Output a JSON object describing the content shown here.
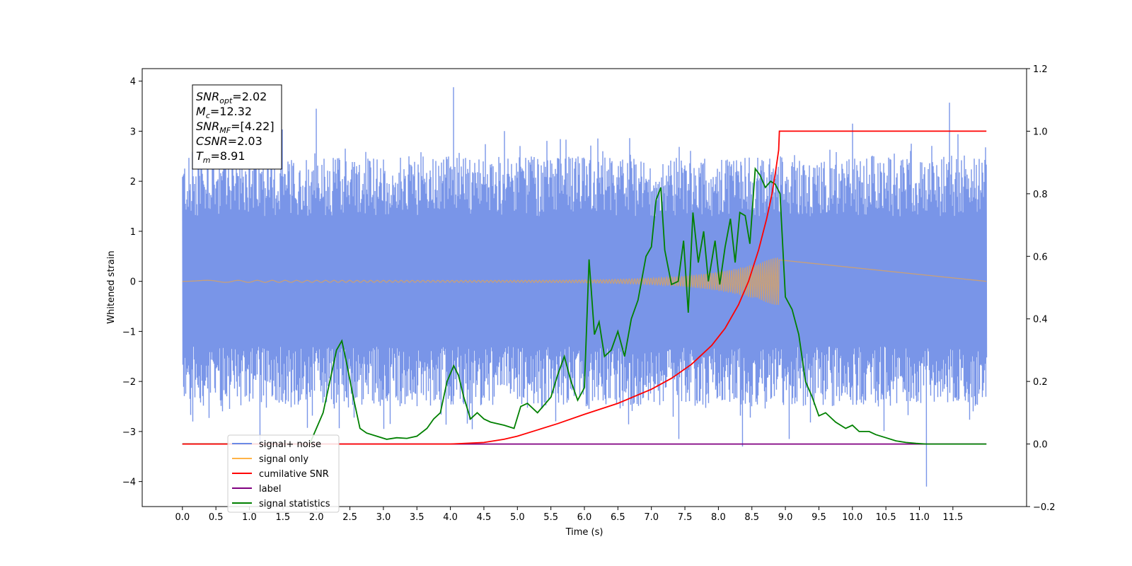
{
  "chart_data": {
    "type": "line",
    "xlabel": "Time (s)",
    "ylabel": "Whitened strain",
    "xlim": [
      -0.6,
      12.6
    ],
    "ylim": [
      -4.5,
      4.25
    ],
    "y2lim": [
      -0.2,
      1.2
    ],
    "x_ticks": [
      "0.0",
      "0.5",
      "1.0",
      "1.5",
      "2.0",
      "2.5",
      "3.0",
      "3.5",
      "4.0",
      "4.5",
      "5.0",
      "5.5",
      "6.0",
      "6.5",
      "7.0",
      "7.5",
      "8.0",
      "8.5",
      "9.0",
      "9.5",
      "10.0",
      "10.5",
      "11.0",
      "11.5"
    ],
    "y_ticks": [
      "4",
      "3",
      "2",
      "1",
      "0",
      "−1",
      "−2",
      "−3",
      "−4"
    ],
    "y2_ticks": [
      "1.2",
      "1.0",
      "0.8",
      "0.6",
      "0.4",
      "0.2",
      "0.0",
      "−0.2"
    ],
    "legend_position": "lower-left",
    "annotations": [
      {
        "var": "SNR",
        "sub": "opt",
        "value": "=2.02"
      },
      {
        "var": "M",
        "sub": "c",
        "value": "=12.32"
      },
      {
        "var": "SNR",
        "sub": "MF",
        "value": "=[4.22]"
      },
      {
        "var": "CSNR",
        "sub": "",
        "value": "=2.03"
      },
      {
        "var": "T",
        "sub": "m",
        "value": "=8.91"
      }
    ],
    "noise_spikes": [
      {
        "x": 2.0,
        "y": 3.45
      },
      {
        "x": 4.05,
        "y": 3.88
      },
      {
        "x": 10.0,
        "y": 3.15
      },
      {
        "x": 11.45,
        "y": 3.57
      },
      {
        "x": 11.1,
        "y": -4.1
      },
      {
        "x": 8.35,
        "y": -3.3
      },
      {
        "x": 7.4,
        "y": -3.15
      },
      {
        "x": 1.15,
        "y": -3.3
      },
      {
        "x": 0.15,
        "y": -2.8
      },
      {
        "x": 3.0,
        "y": -2.95
      },
      {
        "x": 9.05,
        "y": -3.15
      }
    ],
    "series": [
      {
        "name": "signal+ noise",
        "color": "#6a8ae6",
        "axis": "left",
        "envelope": {
          "x": 0.0,
          "x_end": 12.0,
          "core": 1.3,
          "peak": 2.5
        }
      },
      {
        "name": "signal only",
        "color": "#ffb347",
        "axis": "left",
        "chirp": {
          "x_start": 0.0,
          "x_end": 8.91,
          "final_amplitude": 0.5
        }
      },
      {
        "name": "cumilative SNR",
        "color": "#ff0000",
        "axis": "right",
        "x": [
          0,
          4.0,
          4.5,
          4.8,
          5.0,
          5.3,
          5.6,
          6.0,
          6.5,
          7.0,
          7.3,
          7.6,
          7.9,
          8.1,
          8.3,
          8.45,
          8.6,
          8.72,
          8.8,
          8.86,
          8.9,
          8.91,
          8.95,
          12.0
        ],
        "values": [
          0,
          0,
          0.005,
          0.015,
          0.025,
          0.045,
          0.065,
          0.095,
          0.13,
          0.175,
          0.21,
          0.255,
          0.315,
          0.37,
          0.445,
          0.52,
          0.62,
          0.72,
          0.8,
          0.88,
          0.94,
          1.0,
          1.0,
          1.0
        ]
      },
      {
        "name": "label",
        "color": "#800080",
        "axis": "right",
        "x": [
          0,
          12.0
        ],
        "values": [
          0,
          0
        ]
      },
      {
        "name": "signal statistics",
        "color": "#008000",
        "axis": "right",
        "x": [
          0,
          1.0,
          1.9,
          2.0,
          2.1,
          2.2,
          2.3,
          2.38,
          2.45,
          2.55,
          2.65,
          2.75,
          2.9,
          3.05,
          3.2,
          3.35,
          3.5,
          3.65,
          3.75,
          3.85,
          3.95,
          4.05,
          4.12,
          4.2,
          4.3,
          4.4,
          4.5,
          4.6,
          4.8,
          4.95,
          5.05,
          5.15,
          5.3,
          5.5,
          5.6,
          5.7,
          5.8,
          5.9,
          6.0,
          6.07,
          6.15,
          6.22,
          6.3,
          6.4,
          6.5,
          6.6,
          6.7,
          6.8,
          6.92,
          7.0,
          7.07,
          7.14,
          7.2,
          7.3,
          7.4,
          7.48,
          7.55,
          7.62,
          7.7,
          7.78,
          7.85,
          7.95,
          8.02,
          8.1,
          8.18,
          8.25,
          8.32,
          8.4,
          8.47,
          8.55,
          8.62,
          8.7,
          8.78,
          8.85,
          8.92,
          9.0,
          9.1,
          9.2,
          9.3,
          9.4,
          9.5,
          9.6,
          9.75,
          9.9,
          10.0,
          10.1,
          10.25,
          10.35,
          10.5,
          10.65,
          10.8,
          10.95,
          11.1,
          11.3,
          12.0
        ],
        "values": [
          0,
          0,
          0.0,
          0.05,
          0.1,
          0.2,
          0.3,
          0.33,
          0.26,
          0.15,
          0.05,
          0.035,
          0.025,
          0.015,
          0.02,
          0.018,
          0.025,
          0.05,
          0.08,
          0.1,
          0.2,
          0.25,
          0.22,
          0.15,
          0.08,
          0.1,
          0.08,
          0.07,
          0.06,
          0.05,
          0.12,
          0.13,
          0.1,
          0.15,
          0.22,
          0.28,
          0.2,
          0.14,
          0.18,
          0.59,
          0.35,
          0.39,
          0.28,
          0.3,
          0.36,
          0.28,
          0.4,
          0.46,
          0.6,
          0.63,
          0.78,
          0.82,
          0.62,
          0.51,
          0.52,
          0.65,
          0.42,
          0.74,
          0.58,
          0.68,
          0.52,
          0.65,
          0.51,
          0.63,
          0.72,
          0.58,
          0.74,
          0.73,
          0.64,
          0.88,
          0.86,
          0.82,
          0.84,
          0.83,
          0.8,
          0.47,
          0.43,
          0.35,
          0.2,
          0.15,
          0.09,
          0.1,
          0.07,
          0.05,
          0.06,
          0.04,
          0.04,
          0.03,
          0.02,
          0.01,
          0.005,
          0.002,
          0.0,
          0.0,
          0.0
        ]
      }
    ]
  },
  "legend": [
    {
      "label": "signal+ noise",
      "color": "#6a8ae6"
    },
    {
      "label": "signal only",
      "color": "#ffb347"
    },
    {
      "label": "cumilative SNR",
      "color": "#ff0000"
    },
    {
      "label": "label",
      "color": "#800080"
    },
    {
      "label": "signal statistics",
      "color": "#008000"
    }
  ]
}
